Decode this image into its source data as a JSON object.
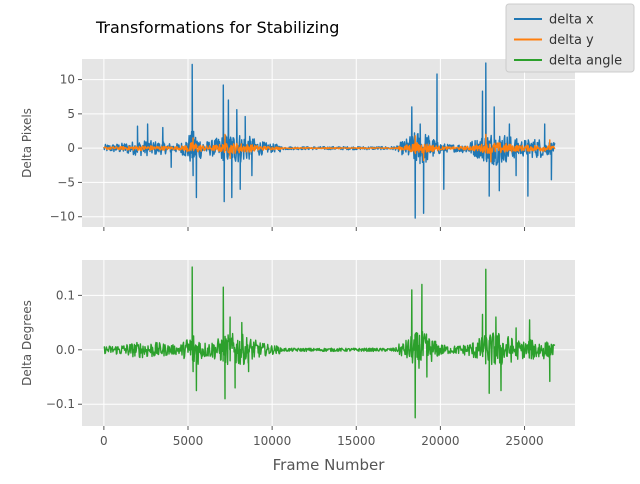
{
  "chart_data": [
    {
      "type": "line",
      "title": "Transformations for Stabilizing",
      "ylabel": "Delta Pixels",
      "xlim": [
        -1300,
        28000
      ],
      "ylim": [
        -11.5,
        13
      ],
      "xticks": [
        0,
        5000,
        10000,
        15000,
        20000,
        25000
      ],
      "yticks": [
        10,
        5,
        0,
        -5,
        -10
      ],
      "ytick_labels": [
        "10",
        "5",
        "0",
        "−5",
        "−10"
      ],
      "grid": true,
      "series": [
        {
          "name": "delta x",
          "color": "#1f77b4",
          "x_range": [
            0,
            26800
          ],
          "noise_amplitude": 0.9,
          "spikes": [
            {
              "x": 5250,
              "y": 12.2
            },
            {
              "x": 5300,
              "y": -4.0
            },
            {
              "x": 5500,
              "y": -7.2
            },
            {
              "x": 7100,
              "y": 9.2
            },
            {
              "x": 7150,
              "y": -7.8
            },
            {
              "x": 7400,
              "y": 7.0
            },
            {
              "x": 7600,
              "y": -7.2
            },
            {
              "x": 7900,
              "y": 5.6
            },
            {
              "x": 8100,
              "y": -6.0
            },
            {
              "x": 8400,
              "y": 4.6
            },
            {
              "x": 8800,
              "y": -4.0
            },
            {
              "x": 2000,
              "y": 3.2
            },
            {
              "x": 2600,
              "y": 3.5
            },
            {
              "x": 3500,
              "y": 3.0
            },
            {
              "x": 4000,
              "y": -2.8
            },
            {
              "x": 18300,
              "y": 6.0
            },
            {
              "x": 18500,
              "y": -10.2
            },
            {
              "x": 18800,
              "y": 3.5
            },
            {
              "x": 19000,
              "y": -9.5
            },
            {
              "x": 19800,
              "y": 10.8
            },
            {
              "x": 20200,
              "y": -6.0
            },
            {
              "x": 22500,
              "y": 8.3
            },
            {
              "x": 22700,
              "y": 12.4
            },
            {
              "x": 22900,
              "y": -7.0
            },
            {
              "x": 23200,
              "y": 6.0
            },
            {
              "x": 23500,
              "y": -6.2
            },
            {
              "x": 24100,
              "y": 3.5
            },
            {
              "x": 24500,
              "y": -4.0
            },
            {
              "x": 25200,
              "y": -7.0
            },
            {
              "x": 26200,
              "y": 3.5
            },
            {
              "x": 26600,
              "y": -4.6
            }
          ]
        },
        {
          "name": "delta y",
          "color": "#ff7f0e",
          "x_range": [
            0,
            26800
          ],
          "noise_amplitude": 0.3,
          "spikes": [
            {
              "x": 5300,
              "y": 1.5
            },
            {
              "x": 7200,
              "y": 2.0
            },
            {
              "x": 7500,
              "y": -1.5
            },
            {
              "x": 18500,
              "y": 1.8
            },
            {
              "x": 19000,
              "y": -1.8
            },
            {
              "x": 22700,
              "y": 2.0
            },
            {
              "x": 23000,
              "y": -2.0
            },
            {
              "x": 26500,
              "y": 1.2
            }
          ]
        }
      ]
    },
    {
      "type": "line",
      "xlabel": "Frame Number",
      "ylabel": "Delta Degrees",
      "xlim": [
        -1300,
        28000
      ],
      "ylim": [
        -0.14,
        0.165
      ],
      "xticks": [
        0,
        5000,
        10000,
        15000,
        20000,
        25000
      ],
      "yticks": [
        0.1,
        0.0,
        -0.1
      ],
      "ytick_labels": [
        "0.1",
        "0.0",
        "−0.1"
      ],
      "grid": true,
      "series": [
        {
          "name": "delta angle",
          "color": "#2ca02c",
          "x_range": [
            0,
            26800
          ],
          "noise_amplitude": 0.012,
          "spikes": [
            {
              "x": 5250,
              "y": 0.152
            },
            {
              "x": 5300,
              "y": -0.04
            },
            {
              "x": 5500,
              "y": -0.075
            },
            {
              "x": 7100,
              "y": 0.115
            },
            {
              "x": 7200,
              "y": -0.09
            },
            {
              "x": 7500,
              "y": 0.06
            },
            {
              "x": 7800,
              "y": -0.07
            },
            {
              "x": 8200,
              "y": 0.05
            },
            {
              "x": 8600,
              "y": -0.04
            },
            {
              "x": 18300,
              "y": 0.11
            },
            {
              "x": 18500,
              "y": -0.125
            },
            {
              "x": 18900,
              "y": 0.12
            },
            {
              "x": 19200,
              "y": -0.05
            },
            {
              "x": 22500,
              "y": 0.065
            },
            {
              "x": 22700,
              "y": 0.148
            },
            {
              "x": 22900,
              "y": -0.08
            },
            {
              "x": 23300,
              "y": 0.06
            },
            {
              "x": 23600,
              "y": -0.075
            },
            {
              "x": 24500,
              "y": 0.04
            },
            {
              "x": 25300,
              "y": 0.055
            },
            {
              "x": 26500,
              "y": -0.058
            }
          ]
        }
      ]
    }
  ],
  "xtick_labels": [
    "0",
    "5000",
    "10000",
    "15000",
    "20000",
    "25000"
  ],
  "legend": {
    "placement": "top-right",
    "entries": [
      {
        "label": "delta x",
        "color": "#1f77b4"
      },
      {
        "label": "delta y",
        "color": "#ff7f0e"
      },
      {
        "label": "delta angle",
        "color": "#2ca02c"
      }
    ]
  },
  "colors": {
    "axes_background": "#e5e5e5",
    "grid": "#ffffff",
    "tick_text": "#555555"
  }
}
